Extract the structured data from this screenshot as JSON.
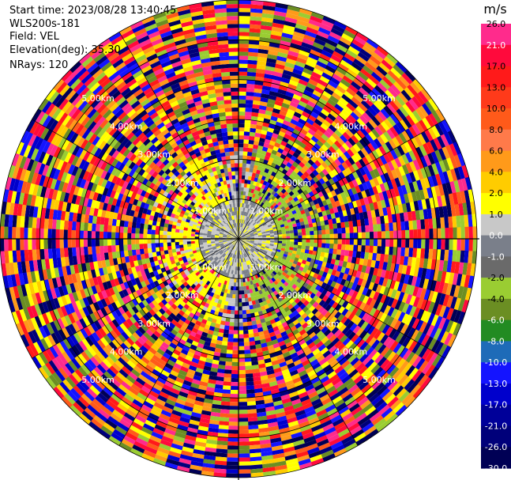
{
  "info": {
    "start_time": "Start time: 2023/08/28 13:40:45",
    "instrument": "WLS200s-181",
    "field": "Field: VEL",
    "elevation": "Elevation(deg): 35.30",
    "nrays": "NRays: 120"
  },
  "ppi": {
    "n_rays": 120,
    "max_range_km": 6,
    "ring_ranges_km": [
      1,
      2,
      3,
      4,
      5,
      6
    ],
    "ring_labels": [
      "1.00km",
      "2.00km",
      "3.00km",
      "4.00km",
      "5.00km"
    ],
    "line_color": "#000000"
  },
  "colorbar": {
    "unit": "m/s",
    "ticks": [
      "26.0",
      "21.0",
      "17.0",
      "13.0",
      "10.0",
      "8.0",
      "6.0",
      "4.0",
      "2.0",
      "1.0",
      "0.0",
      "-1.0",
      "-2.0",
      "-4.0",
      "-6.0",
      "-8.0",
      "-10.0",
      "-13.0",
      "-17.0",
      "-21.0",
      "-26.0",
      "-30.0"
    ],
    "colors": [
      "#ff2b8c",
      "#ff0a3c",
      "#ff1a1a",
      "#ff3a1a",
      "#ff5a1a",
      "#ff7a4a",
      "#ff9a1a",
      "#ffcc00",
      "#ffff00",
      "#c8c8c8",
      "#7a7f8a",
      "#6a6a6a",
      "#9acd32",
      "#6b8e23",
      "#228b22",
      "#1e6bb8",
      "#1414ff",
      "#0000cc",
      "#000099",
      "#00007a",
      "#000055"
    ],
    "tick_text_dark": [
      "#000000"
    ],
    "tick_text_light": [
      "#ffffff"
    ]
  }
}
